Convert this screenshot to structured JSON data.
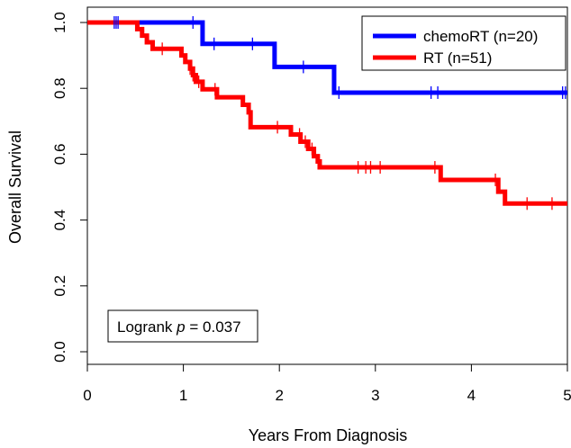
{
  "chart_data": {
    "type": "line",
    "xlabel": "Years From Diagnosis",
    "ylabel": "Overall Survival",
    "xlim": [
      0,
      5
    ],
    "ylim": [
      0,
      1
    ],
    "x_ticks": [
      "0",
      "1",
      "2",
      "3",
      "4",
      "5"
    ],
    "y_ticks": [
      "0.0",
      "0.2",
      "0.4",
      "0.6",
      "0.8",
      "1.0"
    ],
    "grid": false,
    "legend_position": "top-right",
    "annotation": {
      "prefix": "Logrank ",
      "italic": "p",
      "suffix": " = 0.037"
    },
    "series": [
      {
        "name": "chemoRT (n=20)",
        "color": "#0000ff",
        "steps": [
          [
            0,
            1.0
          ],
          [
            1.2,
            0.935
          ],
          [
            1.95,
            0.865
          ],
          [
            2.57,
            0.787
          ],
          [
            5.0,
            0.787
          ]
        ],
        "censored": [
          [
            0.28,
            1.0
          ],
          [
            0.3,
            1.0
          ],
          [
            0.32,
            1.0
          ],
          [
            1.1,
            1.0
          ],
          [
            1.32,
            0.935
          ],
          [
            1.72,
            0.935
          ],
          [
            2.25,
            0.865
          ],
          [
            2.62,
            0.787
          ],
          [
            3.58,
            0.787
          ],
          [
            3.65,
            0.787
          ],
          [
            4.95,
            0.787
          ],
          [
            4.98,
            0.787
          ]
        ]
      },
      {
        "name": "RT (n=51)",
        "color": "#ff0000",
        "steps": [
          [
            0,
            1.0
          ],
          [
            0.52,
            0.98
          ],
          [
            0.57,
            0.96
          ],
          [
            0.62,
            0.94
          ],
          [
            0.68,
            0.92
          ],
          [
            0.98,
            0.9
          ],
          [
            1.02,
            0.88
          ],
          [
            1.07,
            0.86
          ],
          [
            1.1,
            0.84
          ],
          [
            1.13,
            0.82
          ],
          [
            1.2,
            0.797
          ],
          [
            1.35,
            0.773
          ],
          [
            1.62,
            0.75
          ],
          [
            1.68,
            0.727
          ],
          [
            1.7,
            0.682
          ],
          [
            2.12,
            0.66
          ],
          [
            2.22,
            0.638
          ],
          [
            2.3,
            0.616
          ],
          [
            2.36,
            0.594
          ],
          [
            2.4,
            0.578
          ],
          [
            2.42,
            0.56
          ],
          [
            3.68,
            0.522
          ],
          [
            4.28,
            0.486
          ],
          [
            4.35,
            0.45
          ],
          [
            5.0,
            0.45
          ]
        ],
        "censored": [
          [
            0.78,
            0.92
          ],
          [
            1.07,
            0.86
          ],
          [
            1.1,
            0.84
          ],
          [
            1.16,
            0.82
          ],
          [
            1.33,
            0.797
          ],
          [
            1.98,
            0.682
          ],
          [
            2.21,
            0.66
          ],
          [
            2.27,
            0.638
          ],
          [
            2.34,
            0.616
          ],
          [
            2.82,
            0.56
          ],
          [
            2.9,
            0.56
          ],
          [
            2.95,
            0.56
          ],
          [
            3.05,
            0.56
          ],
          [
            3.62,
            0.56
          ],
          [
            4.25,
            0.522
          ],
          [
            4.58,
            0.45
          ],
          [
            4.84,
            0.45
          ]
        ]
      }
    ]
  }
}
